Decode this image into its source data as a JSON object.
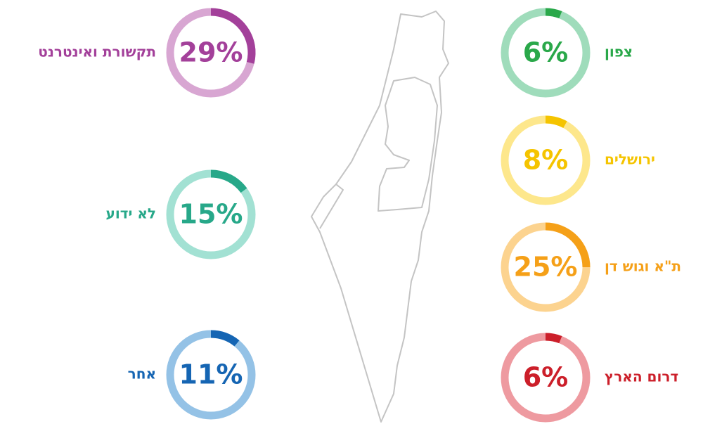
{
  "chart_data": {
    "type": "donut",
    "categories": [
      "צפון",
      "ירושלים",
      "ת\"א וגוש דן",
      "דרום הארץ",
      "תקשורת ואינטרנט",
      "לא ידוע",
      "אחר"
    ],
    "values": [
      6,
      8,
      25,
      6,
      29,
      15,
      11
    ],
    "value_labels": [
      "6%",
      "8%",
      "25%",
      "6%",
      "29%",
      "15%",
      "11%"
    ],
    "colors": [
      "#2aa84a",
      "#f5c400",
      "#f5a018",
      "#cc1f2a",
      "#a3409a",
      "#27a889",
      "#1565b3"
    ],
    "track_colors": [
      "#9fdcbb",
      "#fde78c",
      "#fcd38f",
      "#ee9aa0",
      "#d8a6d2",
      "#a2e1d3",
      "#94c2e6"
    ]
  }
}
